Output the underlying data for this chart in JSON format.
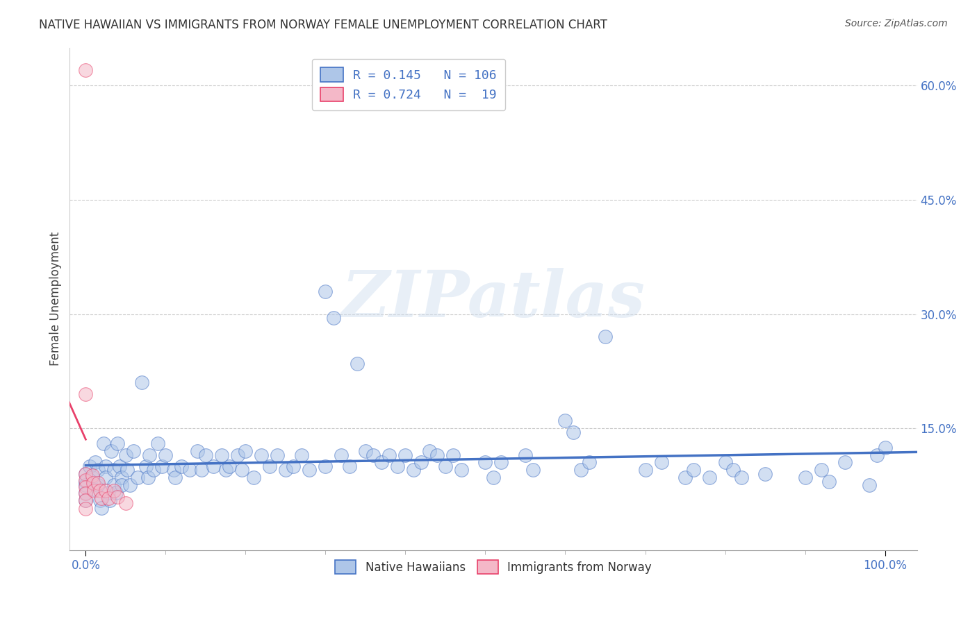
{
  "title": "NATIVE HAWAIIAN VS IMMIGRANTS FROM NORWAY FEMALE UNEMPLOYMENT CORRELATION CHART",
  "source": "Source: ZipAtlas.com",
  "xlabel": "",
  "ylabel": "Female Unemployment",
  "xlim": [
    -0.02,
    1.04
  ],
  "ylim": [
    -0.01,
    0.65
  ],
  "xticks": [
    0.0,
    1.0
  ],
  "xticklabels": [
    "0.0%",
    "100.0%"
  ],
  "yticks": [
    0.15,
    0.3,
    0.45,
    0.6
  ],
  "yticklabels": [
    "15.0%",
    "30.0%",
    "45.0%",
    "60.0%"
  ],
  "blue_R": 0.145,
  "blue_N": 106,
  "pink_R": 0.724,
  "pink_N": 19,
  "blue_color": "#aec6e8",
  "pink_color": "#f4b8c8",
  "blue_line_color": "#4472c4",
  "pink_line_color": "#e8406a",
  "blue_scatter": [
    [
      0.0,
      0.08
    ],
    [
      0.0,
      0.065
    ],
    [
      0.0,
      0.09
    ],
    [
      0.0,
      0.075
    ],
    [
      0.0,
      0.055
    ],
    [
      0.005,
      0.1
    ],
    [
      0.008,
      0.085
    ],
    [
      0.01,
      0.07
    ],
    [
      0.012,
      0.105
    ],
    [
      0.015,
      0.095
    ],
    [
      0.015,
      0.075
    ],
    [
      0.018,
      0.055
    ],
    [
      0.02,
      0.045
    ],
    [
      0.022,
      0.13
    ],
    [
      0.025,
      0.1
    ],
    [
      0.025,
      0.085
    ],
    [
      0.028,
      0.065
    ],
    [
      0.03,
      0.055
    ],
    [
      0.032,
      0.12
    ],
    [
      0.035,
      0.095
    ],
    [
      0.035,
      0.075
    ],
    [
      0.038,
      0.065
    ],
    [
      0.04,
      0.13
    ],
    [
      0.042,
      0.1
    ],
    [
      0.045,
      0.085
    ],
    [
      0.045,
      0.075
    ],
    [
      0.05,
      0.115
    ],
    [
      0.052,
      0.095
    ],
    [
      0.055,
      0.075
    ],
    [
      0.06,
      0.12
    ],
    [
      0.065,
      0.085
    ],
    [
      0.07,
      0.21
    ],
    [
      0.075,
      0.1
    ],
    [
      0.078,
      0.085
    ],
    [
      0.08,
      0.115
    ],
    [
      0.085,
      0.095
    ],
    [
      0.09,
      0.13
    ],
    [
      0.095,
      0.1
    ],
    [
      0.1,
      0.115
    ],
    [
      0.11,
      0.095
    ],
    [
      0.112,
      0.085
    ],
    [
      0.12,
      0.1
    ],
    [
      0.13,
      0.095
    ],
    [
      0.14,
      0.12
    ],
    [
      0.145,
      0.095
    ],
    [
      0.15,
      0.115
    ],
    [
      0.16,
      0.1
    ],
    [
      0.17,
      0.115
    ],
    [
      0.175,
      0.095
    ],
    [
      0.18,
      0.1
    ],
    [
      0.19,
      0.115
    ],
    [
      0.195,
      0.095
    ],
    [
      0.2,
      0.12
    ],
    [
      0.21,
      0.085
    ],
    [
      0.22,
      0.115
    ],
    [
      0.23,
      0.1
    ],
    [
      0.24,
      0.115
    ],
    [
      0.25,
      0.095
    ],
    [
      0.26,
      0.1
    ],
    [
      0.27,
      0.115
    ],
    [
      0.28,
      0.095
    ],
    [
      0.3,
      0.33
    ],
    [
      0.3,
      0.1
    ],
    [
      0.31,
      0.295
    ],
    [
      0.32,
      0.115
    ],
    [
      0.33,
      0.1
    ],
    [
      0.34,
      0.235
    ],
    [
      0.35,
      0.12
    ],
    [
      0.36,
      0.115
    ],
    [
      0.37,
      0.105
    ],
    [
      0.38,
      0.115
    ],
    [
      0.39,
      0.1
    ],
    [
      0.4,
      0.115
    ],
    [
      0.41,
      0.095
    ],
    [
      0.42,
      0.105
    ],
    [
      0.43,
      0.12
    ],
    [
      0.44,
      0.115
    ],
    [
      0.45,
      0.1
    ],
    [
      0.46,
      0.115
    ],
    [
      0.47,
      0.095
    ],
    [
      0.5,
      0.105
    ],
    [
      0.51,
      0.085
    ],
    [
      0.52,
      0.105
    ],
    [
      0.55,
      0.115
    ],
    [
      0.56,
      0.095
    ],
    [
      0.6,
      0.16
    ],
    [
      0.61,
      0.145
    ],
    [
      0.62,
      0.095
    ],
    [
      0.63,
      0.105
    ],
    [
      0.65,
      0.27
    ],
    [
      0.7,
      0.095
    ],
    [
      0.72,
      0.105
    ],
    [
      0.75,
      0.085
    ],
    [
      0.76,
      0.095
    ],
    [
      0.78,
      0.085
    ],
    [
      0.8,
      0.105
    ],
    [
      0.81,
      0.095
    ],
    [
      0.82,
      0.085
    ],
    [
      0.85,
      0.09
    ],
    [
      0.9,
      0.085
    ],
    [
      0.92,
      0.095
    ],
    [
      0.93,
      0.08
    ],
    [
      0.95,
      0.105
    ],
    [
      0.98,
      0.075
    ],
    [
      0.99,
      0.115
    ],
    [
      1.0,
      0.125
    ]
  ],
  "pink_scatter": [
    [
      0.0,
      0.62
    ],
    [
      0.0,
      0.195
    ],
    [
      0.0,
      0.09
    ],
    [
      0.0,
      0.082
    ],
    [
      0.0,
      0.073
    ],
    [
      0.0,
      0.064
    ],
    [
      0.0,
      0.055
    ],
    [
      0.0,
      0.044
    ],
    [
      0.008,
      0.088
    ],
    [
      0.009,
      0.078
    ],
    [
      0.01,
      0.068
    ],
    [
      0.015,
      0.078
    ],
    [
      0.018,
      0.068
    ],
    [
      0.02,
      0.058
    ],
    [
      0.025,
      0.068
    ],
    [
      0.028,
      0.058
    ],
    [
      0.035,
      0.068
    ],
    [
      0.04,
      0.06
    ],
    [
      0.05,
      0.052
    ]
  ],
  "watermark": "ZIPatlas",
  "background_color": "#ffffff",
  "grid_color": "#cccccc",
  "legend1_label_blue": "R = 0.145   N = 106",
  "legend1_label_pink": "R = 0.724   N =  19",
  "legend2_label_blue": "Native Hawaiians",
  "legend2_label_pink": "Immigrants from Norway"
}
